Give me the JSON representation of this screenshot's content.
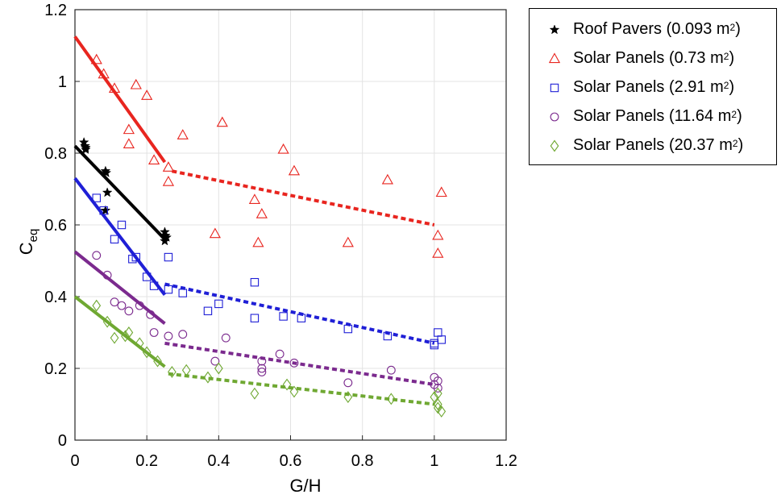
{
  "chart_data": {
    "type": "scatter",
    "title": "",
    "xlabel": "G/H",
    "ylabel": "C",
    "ylabel_sub": "eq",
    "xlim": [
      0,
      1.2
    ],
    "ylim": [
      0,
      1.2
    ],
    "xticks": [
      0,
      0.2,
      0.4,
      0.6,
      0.8,
      1,
      1.2
    ],
    "yticks": [
      0,
      0.2,
      0.4,
      0.6,
      0.8,
      1,
      1.2
    ],
    "xtick_labels": [
      "0",
      "0.2",
      "0.4",
      "0.6",
      "0.8",
      "1",
      "1.2"
    ],
    "ytick_labels": [
      "0",
      "0.2",
      "0.4",
      "0.6",
      "0.8",
      "1",
      "1.2"
    ],
    "grid": true,
    "legend_position": "outside-top-right",
    "series": [
      {
        "name": "Roof Pavers (0.093 m2)",
        "label": "Roof Pavers (0.093 m",
        "label_sup": "2",
        "label_end": ")",
        "marker": "star",
        "color": "#000000",
        "points": [
          [
            0.025,
            0.83
          ],
          [
            0.028,
            0.82
          ],
          [
            0.03,
            0.81
          ],
          [
            0.03,
            0.815
          ],
          [
            0.085,
            0.75
          ],
          [
            0.087,
            0.745
          ],
          [
            0.09,
            0.69
          ],
          [
            0.085,
            0.64
          ],
          [
            0.25,
            0.58
          ],
          [
            0.252,
            0.57
          ],
          [
            0.25,
            0.555
          ],
          [
            0.255,
            0.565
          ]
        ],
        "fit_solid": {
          "x": [
            0,
            0.25
          ],
          "y": [
            0.82,
            0.56
          ]
        }
      },
      {
        "name": "Solar Panels (0.73 m2)",
        "label": "Solar Panels (0.73 m",
        "label_sup": "2",
        "label_end": ")",
        "marker": "triangle",
        "color": "#e8251f",
        "points": [
          [
            0.06,
            1.06
          ],
          [
            0.08,
            1.02
          ],
          [
            0.11,
            0.98
          ],
          [
            0.17,
            0.99
          ],
          [
            0.2,
            0.96
          ],
          [
            0.15,
            0.865
          ],
          [
            0.15,
            0.825
          ],
          [
            0.22,
            0.78
          ],
          [
            0.26,
            0.76
          ],
          [
            0.26,
            0.72
          ],
          [
            0.3,
            0.85
          ],
          [
            0.41,
            0.885
          ],
          [
            0.39,
            0.575
          ],
          [
            0.5,
            0.67
          ],
          [
            0.52,
            0.63
          ],
          [
            0.51,
            0.55
          ],
          [
            0.58,
            0.81
          ],
          [
            0.61,
            0.75
          ],
          [
            0.76,
            0.55
          ],
          [
            0.87,
            0.725
          ],
          [
            1.01,
            0.57
          ],
          [
            1.02,
            0.69
          ],
          [
            1.01,
            0.52
          ]
        ],
        "fit_solid": {
          "x": [
            0,
            0.25
          ],
          "y": [
            1.125,
            0.775
          ]
        },
        "fit_dashed": {
          "x": [
            0.27,
            1.0
          ],
          "y": [
            0.75,
            0.6
          ]
        }
      },
      {
        "name": "Solar Panels (2.91 m2)",
        "label": "Solar Panels (2.91 m",
        "label_sup": "2",
        "label_end": ")",
        "marker": "square",
        "color": "#1f1fd6",
        "points": [
          [
            0.06,
            0.675
          ],
          [
            0.08,
            0.64
          ],
          [
            0.11,
            0.56
          ],
          [
            0.13,
            0.6
          ],
          [
            0.16,
            0.505
          ],
          [
            0.17,
            0.51
          ],
          [
            0.2,
            0.455
          ],
          [
            0.22,
            0.43
          ],
          [
            0.26,
            0.51
          ],
          [
            0.26,
            0.42
          ],
          [
            0.3,
            0.41
          ],
          [
            0.37,
            0.36
          ],
          [
            0.4,
            0.38
          ],
          [
            0.5,
            0.44
          ],
          [
            0.5,
            0.34
          ],
          [
            0.58,
            0.345
          ],
          [
            0.63,
            0.34
          ],
          [
            0.76,
            0.31
          ],
          [
            0.87,
            0.29
          ],
          [
            1.0,
            0.27
          ],
          [
            1.0,
            0.265
          ],
          [
            1.01,
            0.3
          ],
          [
            1.02,
            0.28
          ]
        ],
        "fit_solid": {
          "x": [
            0,
            0.25
          ],
          "y": [
            0.73,
            0.405
          ]
        },
        "fit_dashed": {
          "x": [
            0.25,
            1.0
          ],
          "y": [
            0.435,
            0.27
          ]
        }
      },
      {
        "name": "Solar Panels (11.64 m2)",
        "label": "Solar Panels (11.64 m",
        "label_sup": "2",
        "label_end": ")",
        "marker": "circle",
        "color": "#7b2a8e",
        "points": [
          [
            0.06,
            0.515
          ],
          [
            0.09,
            0.46
          ],
          [
            0.11,
            0.385
          ],
          [
            0.13,
            0.375
          ],
          [
            0.15,
            0.36
          ],
          [
            0.18,
            0.375
          ],
          [
            0.21,
            0.35
          ],
          [
            0.22,
            0.3
          ],
          [
            0.26,
            0.29
          ],
          [
            0.3,
            0.295
          ],
          [
            0.39,
            0.22
          ],
          [
            0.42,
            0.285
          ],
          [
            0.52,
            0.22
          ],
          [
            0.52,
            0.2
          ],
          [
            0.52,
            0.19
          ],
          [
            0.57,
            0.24
          ],
          [
            0.61,
            0.215
          ],
          [
            0.76,
            0.16
          ],
          [
            0.88,
            0.195
          ],
          [
            1.0,
            0.175
          ],
          [
            1.01,
            0.165
          ],
          [
            1.0,
            0.155
          ],
          [
            1.01,
            0.145
          ]
        ],
        "fit_solid": {
          "x": [
            0,
            0.25
          ],
          "y": [
            0.525,
            0.325
          ]
        },
        "fit_dashed": {
          "x": [
            0.25,
            1.0
          ],
          "y": [
            0.27,
            0.155
          ]
        }
      },
      {
        "name": "Solar Panels (20.37 m2)",
        "label": "Solar Panels (20.37 m",
        "label_sup": "2",
        "label_end": ")",
        "marker": "diamond",
        "color": "#6fa832",
        "points": [
          [
            0.06,
            0.375
          ],
          [
            0.09,
            0.33
          ],
          [
            0.11,
            0.285
          ],
          [
            0.14,
            0.29
          ],
          [
            0.15,
            0.3
          ],
          [
            0.18,
            0.27
          ],
          [
            0.2,
            0.245
          ],
          [
            0.23,
            0.22
          ],
          [
            0.27,
            0.19
          ],
          [
            0.31,
            0.195
          ],
          [
            0.37,
            0.175
          ],
          [
            0.4,
            0.2
          ],
          [
            0.5,
            0.13
          ],
          [
            0.59,
            0.155
          ],
          [
            0.61,
            0.135
          ],
          [
            0.76,
            0.12
          ],
          [
            0.88,
            0.115
          ],
          [
            1.0,
            0.12
          ],
          [
            1.01,
            0.1
          ],
          [
            1.01,
            0.09
          ],
          [
            1.02,
            0.08
          ],
          [
            1.01,
            0.13
          ]
        ],
        "fit_solid": {
          "x": [
            0,
            0.25
          ],
          "y": [
            0.4,
            0.205
          ]
        },
        "fit_dashed": {
          "x": [
            0.26,
            1.0
          ],
          "y": [
            0.185,
            0.1
          ]
        }
      }
    ]
  }
}
